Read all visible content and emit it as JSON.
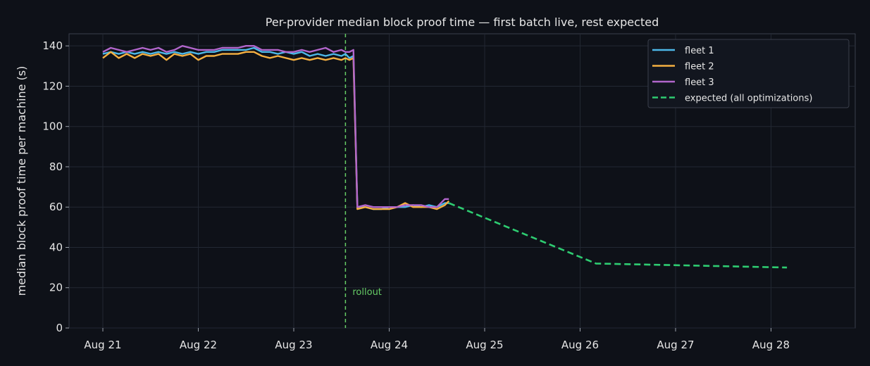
{
  "chart_data": {
    "type": "line",
    "title": "Per-provider median block proof time — first batch live, rest expected",
    "xlabel": "",
    "ylabel": "median block proof time per machine (s)",
    "x_ticks": [
      "Aug 21",
      "Aug 22",
      "Aug 23",
      "Aug 24",
      "Aug 25",
      "Aug 26",
      "Aug 27",
      "Aug 28"
    ],
    "y_ticks": [
      0,
      20,
      40,
      60,
      80,
      100,
      120,
      140
    ],
    "xlim": [
      "Aug 20 15:30",
      "Aug 28 21:10"
    ],
    "ylim": [
      0,
      146
    ],
    "grid": true,
    "legend_position": "top-right",
    "x": [
      "Aug 21 00:00",
      "Aug 21 02:00",
      "Aug 21 04:00",
      "Aug 21 06:00",
      "Aug 21 08:00",
      "Aug 21 10:00",
      "Aug 21 12:00",
      "Aug 21 14:00",
      "Aug 21 16:00",
      "Aug 21 18:00",
      "Aug 21 20:00",
      "Aug 21 22:00",
      "Aug 22 00:00",
      "Aug 22 02:00",
      "Aug 22 04:00",
      "Aug 22 06:00",
      "Aug 22 08:00",
      "Aug 22 10:00",
      "Aug 22 12:00",
      "Aug 22 14:00",
      "Aug 22 16:00",
      "Aug 22 18:00",
      "Aug 22 20:00",
      "Aug 22 22:00",
      "Aug 23 00:00",
      "Aug 23 02:00",
      "Aug 23 04:00",
      "Aug 23 06:00",
      "Aug 23 08:00",
      "Aug 23 10:00",
      "Aug 23 12:00",
      "Aug 23 13:00",
      "Aug 23 14:00",
      "Aug 23 15:00",
      "Aug 23 16:00",
      "Aug 23 18:00",
      "Aug 23 20:00",
      "Aug 23 22:00",
      "Aug 24 00:00",
      "Aug 24 02:00",
      "Aug 24 04:00",
      "Aug 24 06:00",
      "Aug 24 08:00",
      "Aug 24 10:00",
      "Aug 24 12:00",
      "Aug 24 14:00",
      "Aug 24 15:00"
    ],
    "series": [
      {
        "name": "fleet 1",
        "color": "#4db8e8",
        "dashed": false,
        "values": [
          136,
          137,
          136,
          137,
          136,
          137,
          136,
          137,
          136,
          137,
          136,
          137,
          136,
          137,
          137,
          138,
          138,
          138,
          138,
          139,
          137,
          137,
          136,
          137,
          136,
          137,
          135,
          136,
          135,
          136,
          135,
          136,
          134,
          135,
          60,
          60,
          59,
          59,
          60,
          60,
          60,
          61,
          60,
          61,
          60,
          62,
          62
        ]
      },
      {
        "name": "fleet 2",
        "color": "#f5b041",
        "dashed": false,
        "values": [
          134,
          137,
          134,
          136,
          134,
          136,
          135,
          136,
          133,
          136,
          135,
          136,
          133,
          135,
          135,
          136,
          136,
          136,
          137,
          137,
          135,
          134,
          135,
          134,
          133,
          134,
          133,
          134,
          133,
          134,
          133,
          134,
          133,
          134,
          59,
          60,
          59,
          59,
          59,
          60,
          62,
          60,
          60,
          60,
          59,
          61,
          63
        ]
      },
      {
        "name": "fleet 3",
        "color": "#b266cc",
        "dashed": false,
        "values": [
          137,
          139,
          138,
          137,
          138,
          139,
          138,
          139,
          137,
          138,
          140,
          139,
          138,
          138,
          138,
          139,
          139,
          139,
          140,
          140,
          138,
          138,
          138,
          137,
          137,
          138,
          137,
          138,
          139,
          137,
          138,
          137,
          137,
          138,
          60,
          61,
          60,
          60,
          60,
          60,
          61,
          61,
          61,
          60,
          60,
          64,
          64
        ]
      }
    ],
    "expected": {
      "name": "expected (all optimizations)",
      "color": "#2ecc71",
      "dashed": true,
      "x": [
        "Aug 24 15:00",
        "Aug 26 04:00",
        "Aug 28 04:00"
      ],
      "values": [
        62,
        32,
        30
      ]
    },
    "annotation": {
      "text": "rollout",
      "x": "Aug 23 13:00",
      "color": "#66cc66"
    }
  }
}
